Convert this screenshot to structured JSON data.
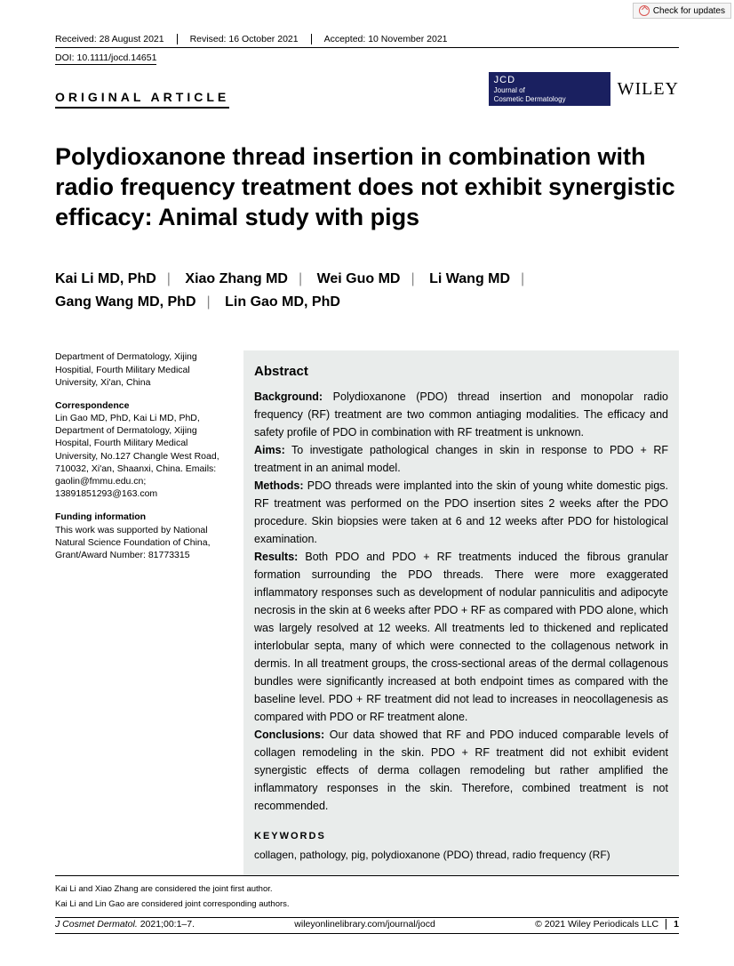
{
  "checkUpdates": "Check for updates",
  "dates": {
    "received": "Received: 28 August 2021",
    "revised": "Revised: 16 October 2021",
    "accepted": "Accepted: 10 November 2021"
  },
  "doi": "DOI: 10.1111/jocd.14651",
  "articleType": "ORIGINAL ARTICLE",
  "jcd": {
    "abbr": "JCD",
    "full1": "Journal of",
    "full2": "Cosmetic Dermatology"
  },
  "publisher": "WILEY",
  "title": "Polydioxanone thread insertion in combination with radio frequency treatment does not exhibit synergistic efficacy: Animal study with pigs",
  "authors": [
    "Kai Li MD, PhD",
    "Xiao Zhang MD",
    "Wei Guo MD",
    "Li Wang MD",
    "Gang Wang MD, PhD",
    "Lin Gao MD, PhD"
  ],
  "affiliation": "Department of Dermatology, Xijing Hospitial, Fourth Military Medical University, Xi'an, China",
  "correspondence": {
    "heading": "Correspondence",
    "text": "Lin Gao MD, PhD, Kai Li MD, PhD, Department of Dermatology, Xijing Hospital, Fourth Military Medical University, No.127 Changle West Road, 710032, Xi'an, Shaanxi, China. Emails: gaolin@fmmu.edu.cn; 13891851293@163.com"
  },
  "funding": {
    "heading": "Funding information",
    "text": "This work was supported by National Natural Science Foundation of China, Grant/Award Number: 81773315"
  },
  "abstract": {
    "heading": "Abstract",
    "background": {
      "label": "Background:",
      "text": " Polydioxanone (PDO) thread insertion and monopolar radio frequency (RF) treatment are two common antiaging modalities. The efficacy and safety profile of PDO in combination with RF treatment is unknown."
    },
    "aims": {
      "label": "Aims:",
      "text": " To investigate pathological changes in skin in response to PDO + RF treatment in an animal model."
    },
    "methods": {
      "label": "Methods:",
      "text": " PDO threads were implanted into the skin of young white domestic pigs. RF treatment was performed on the PDO insertion sites 2 weeks after the PDO procedure. Skin biopsies were taken at 6 and 12 weeks after PDO for histological examination."
    },
    "results": {
      "label": "Results:",
      "text": " Both PDO and PDO + RF treatments induced the fibrous granular formation surrounding the PDO threads. There were more exaggerated inflammatory responses such as development of nodular panniculitis and adipocyte necrosis in the skin at 6 weeks after PDO + RF as compared with PDO alone, which was largely resolved at 12 weeks. All treatments led to thickened and replicated interlobular septa, many of which were connected to the collagenous network in dermis. In all treatment groups, the cross-sectional areas of the dermal collagenous bundles were significantly increased at both endpoint times as compared with the baseline level. PDO + RF treatment did not lead to increases in neocollagenesis as compared with PDO or RF treatment alone."
    },
    "conclusions": {
      "label": "Conclusions:",
      "text": " Our data showed that RF and PDO induced comparable levels of collagen remodeling in the skin. PDO + RF treatment did not exhibit evident synergistic effects of derma collagen remodeling but rather amplified the inflammatory responses in the skin. Therefore, combined treatment is not recommended."
    }
  },
  "keywords": {
    "heading": "KEYWORDS",
    "list": "collagen, pathology, pig, polydioxanone (PDO) thread, radio frequency (RF)"
  },
  "footnotes": {
    "n1": "Kai Li and Xiao Zhang are considered the joint first author.",
    "n2": "Kai Li and Lin Gao are considered joint corresponding authors."
  },
  "bottom": {
    "citation": "J Cosmet Dermatol. ",
    "citationRest": "2021;00:1–7.",
    "url": "wileyonlinelibrary.com/journal/jocd",
    "copyright": "© 2021 Wiley Periodicals LLC",
    "page": "1"
  }
}
